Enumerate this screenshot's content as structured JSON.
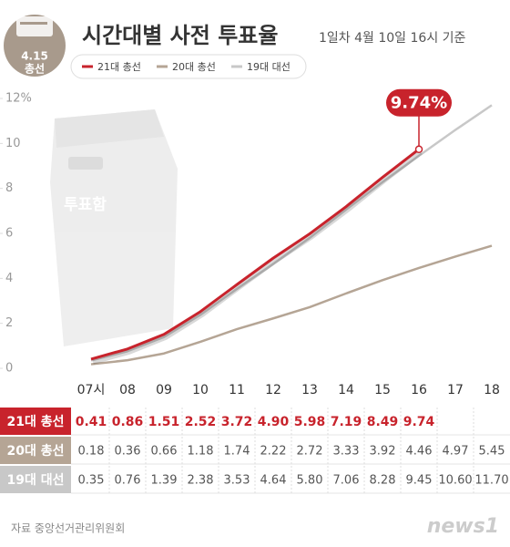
{
  "chart_data": {
    "type": "line",
    "title": "시간대별 사전 투표율",
    "subtitle": "1일차 4월 10일  16시 기준",
    "badge": [
      "4.15",
      "총선"
    ],
    "box_label": "투표함",
    "callout": "9.74%",
    "source": "자료 중앙선거관리위원회",
    "logo": "news1",
    "categories": [
      "07시",
      "08",
      "09",
      "10",
      "11",
      "12",
      "13",
      "14",
      "15",
      "16",
      "17",
      "18"
    ],
    "series": [
      {
        "name": "21대 총선",
        "color": "#c8232c",
        "values": [
          0.41,
          0.86,
          1.51,
          2.52,
          3.72,
          4.9,
          5.98,
          7.19,
          8.49,
          9.74,
          null,
          null
        ],
        "value_labels": [
          "0.41",
          "0.86",
          "1.51",
          "2.52",
          "3.72",
          "4.90",
          "5.98",
          "7.19",
          "8.49",
          "9.74",
          null,
          null
        ]
      },
      {
        "name": "20대 총선",
        "color": "#b5a595",
        "values": [
          0.18,
          0.36,
          0.66,
          1.18,
          1.74,
          2.22,
          2.72,
          3.33,
          3.92,
          4.46,
          4.97,
          5.45
        ],
        "value_labels": [
          "0.18",
          "0.36",
          "0.66",
          "1.18",
          "1.74",
          "2.22",
          "2.72",
          "3.33",
          "3.92",
          "4.46",
          "4.97",
          "5.45"
        ]
      },
      {
        "name": "19대 대선",
        "color": "#c8c8c8",
        "values": [
          0.35,
          0.76,
          1.39,
          2.38,
          3.53,
          4.64,
          5.8,
          7.06,
          8.28,
          9.45,
          10.6,
          11.7
        ],
        "value_labels": [
          "0.35",
          "0.76",
          "1.39",
          "2.38",
          "3.53",
          "4.64",
          "5.80",
          "7.06",
          "8.28",
          "9.45",
          "10.60",
          "11.70"
        ]
      }
    ],
    "ylim": [
      0,
      12
    ],
    "yticks": [
      0,
      2,
      4,
      6,
      8,
      10,
      {
        "value": 12,
        "label": "12%"
      }
    ],
    "grid": false
  }
}
